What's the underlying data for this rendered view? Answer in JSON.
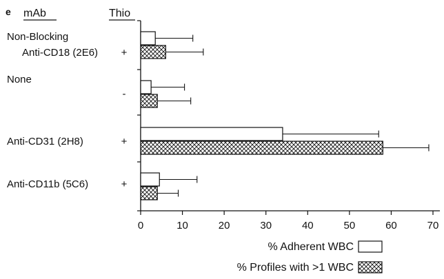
{
  "chart_data": {
    "type": "bar",
    "orientation": "horizontal",
    "panel_label": "e",
    "column_headers": {
      "mab": "mAb",
      "thio": "Thio"
    },
    "categories": [
      {
        "label_lines": [
          "Non-Blocking",
          "Anti-CD18 (2E6)"
        ],
        "thio": "+"
      },
      {
        "label_lines": [
          "None"
        ],
        "thio": "-"
      },
      {
        "label_lines": [
          "Anti-CD31 (2H8)"
        ],
        "thio": "+"
      },
      {
        "label_lines": [
          "Anti-CD11b (5C6)"
        ],
        "thio": "+"
      }
    ],
    "series": [
      {
        "name": "% Adherent WBC",
        "pattern": "open",
        "values": [
          3.5,
          2.5,
          34,
          4.5
        ],
        "errors": [
          9,
          8,
          23,
          9
        ]
      },
      {
        "name": "% Profiles with >1 WBC",
        "pattern": "crosshatch",
        "values": [
          6,
          4,
          58,
          4
        ],
        "errors": [
          9,
          8,
          11,
          5
        ]
      }
    ],
    "xlim": [
      0,
      70
    ],
    "xticks": [
      0,
      10,
      20,
      30,
      40,
      50,
      60,
      70
    ],
    "xlabel": "",
    "ylabel": "",
    "title": "",
    "grid": false,
    "legend_position": "bottom-right"
  }
}
